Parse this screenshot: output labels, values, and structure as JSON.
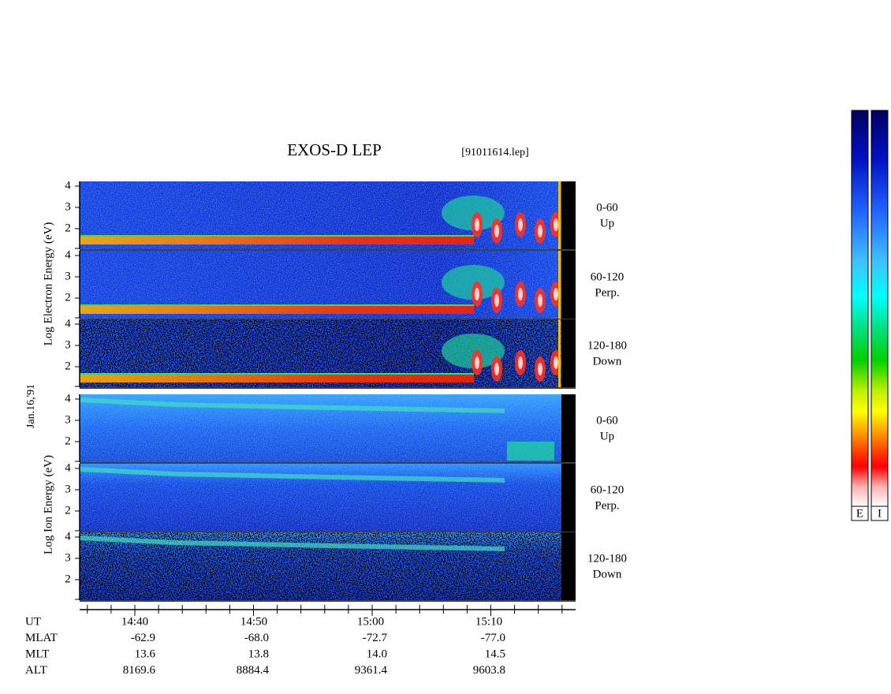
{
  "title": "EXOS-D LEP",
  "file": "[91011614.lep]",
  "date": "Jan.16,'91",
  "electron": {
    "axis_label": "Log Electron Energy (eV)",
    "panels": [
      {
        "ticks": [
          "4",
          "3",
          "2"
        ],
        "label": [
          "0-60",
          "Up"
        ]
      },
      {
        "ticks": [
          "4",
          "3",
          "2"
        ],
        "label": [
          "60-120",
          "Perp."
        ]
      },
      {
        "ticks": [
          "4",
          "3",
          "2"
        ],
        "label": [
          "120-180",
          "Down"
        ]
      }
    ]
  },
  "ion": {
    "axis_label": "Log Ion Energy (eV)",
    "panels": [
      {
        "ticks": [
          "4",
          "3",
          "2"
        ],
        "label": [
          "0-60",
          "Up"
        ]
      },
      {
        "ticks": [
          "4",
          "3",
          "2"
        ],
        "label": [
          "60-120",
          "Perp."
        ]
      },
      {
        "ticks": [
          "4",
          "3",
          "2"
        ],
        "label": [
          "120-180",
          "Down"
        ]
      }
    ]
  },
  "colorbar": {
    "labels": [
      "E",
      "I"
    ]
  },
  "footer": {
    "rows": [
      [
        "UT",
        "14:40",
        "14:50",
        "15:00",
        "15:10"
      ],
      [
        "MLAT",
        "-62.9",
        "-68.0",
        "-72.7",
        "-77.0"
      ],
      [
        "MLT",
        "13.6",
        "13.8",
        "14.0",
        "14.5"
      ],
      [
        "ALT",
        "8169.6",
        "8884.4",
        "9361.4",
        "9603.8"
      ]
    ]
  }
}
